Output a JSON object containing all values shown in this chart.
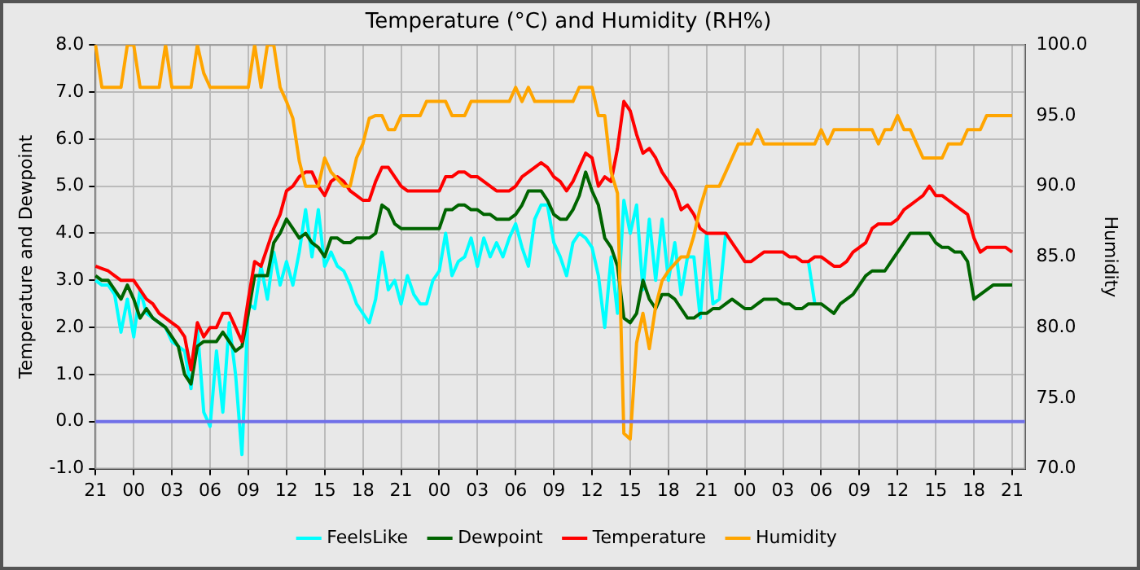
{
  "chart_data": {
    "type": "line",
    "title": "Temperature (°C) and Humidity (RH%)",
    "ylabel": "Temperature and Dewpoint",
    "y2label": "Humidity",
    "categories": [
      "21",
      null,
      null,
      null,
      null,
      null,
      "00",
      null,
      null,
      null,
      null,
      null,
      "03",
      null,
      null,
      null,
      null,
      null,
      "06",
      null,
      null,
      null,
      null,
      null,
      "09",
      null,
      null,
      null,
      null,
      null,
      "12",
      null,
      null,
      null,
      null,
      null,
      "15",
      null,
      null,
      null,
      null,
      null,
      "18",
      null,
      null,
      null,
      null,
      null,
      "21",
      null,
      null,
      null,
      null,
      null,
      "00",
      null,
      null,
      null,
      null,
      null,
      "03",
      null,
      null,
      null,
      null,
      null,
      "06",
      null,
      null,
      null,
      null,
      null,
      "09",
      null,
      null,
      null,
      null,
      null,
      "12",
      null,
      null,
      null,
      null,
      null,
      "15",
      null,
      null,
      null,
      null,
      null,
      "18",
      null,
      null,
      null,
      null,
      null,
      "21",
      null,
      null,
      null,
      null,
      null,
      "00",
      null,
      null,
      null,
      null,
      null,
      "03",
      null,
      null,
      null,
      null,
      null,
      "06",
      null,
      null,
      null,
      null,
      null,
      "09",
      null,
      null,
      null,
      null,
      null,
      "12",
      null,
      null,
      null,
      null,
      null,
      "15",
      null,
      null,
      null,
      null,
      null,
      "18",
      null,
      null,
      null,
      null,
      null,
      "21",
      null,
      null
    ],
    "ylim": [
      -1,
      8
    ],
    "yticks": [
      {
        "value": -1,
        "label": "-1.0"
      },
      {
        "value": 0,
        "label": "0.0"
      },
      {
        "value": 1,
        "label": "1.0"
      },
      {
        "value": 2,
        "label": "2.0"
      },
      {
        "value": 3,
        "label": "3.0"
      },
      {
        "value": 4,
        "label": "4.0"
      },
      {
        "value": 5,
        "label": "5.0"
      },
      {
        "value": 6,
        "label": "6.0"
      },
      {
        "value": 7,
        "label": "7.0"
      },
      {
        "value": 8,
        "label": "8.0"
      }
    ],
    "y2lim": [
      70,
      100
    ],
    "y2ticks": [
      {
        "value": 70,
        "label": "70.0"
      },
      {
        "value": 75,
        "label": "75.0"
      },
      {
        "value": 80,
        "label": "80.0"
      },
      {
        "value": 85,
        "label": "85.0"
      },
      {
        "value": 90,
        "label": "90.0"
      },
      {
        "value": 95,
        "label": "95.0"
      },
      {
        "value": 100,
        "label": "100.0"
      }
    ],
    "grid": true,
    "legend": "bottom",
    "marker": "none",
    "line_style": "solid",
    "ref_lines": [
      {
        "axis": "y",
        "value": 0,
        "label": null,
        "color": "#7070e8"
      }
    ],
    "series": [
      {
        "name": "FeelsLike",
        "color": "#00ffff",
        "values": [
          3.0,
          2.9,
          2.9,
          2.7,
          1.9,
          2.6,
          1.8,
          2.8,
          2.3,
          2.2,
          2.1,
          2.0,
          1.7,
          1.6,
          1.5,
          0.7,
          2.0,
          0.2,
          -0.1,
          1.5,
          0.2,
          2.1,
          1.0,
          -0.7,
          2.5,
          2.4,
          3.3,
          2.6,
          3.6,
          2.9,
          3.4,
          2.9,
          3.6,
          4.5,
          3.5,
          4.5,
          3.3,
          3.6,
          3.3,
          3.2,
          2.9,
          2.5,
          2.3,
          2.1,
          2.6,
          3.6,
          2.8,
          3.0,
          2.5,
          3.1,
          2.7,
          2.5,
          2.5,
          3.0,
          3.2,
          4.0,
          3.1,
          3.4,
          3.5,
          3.9,
          3.3,
          3.9,
          3.5,
          3.8,
          3.5,
          3.9,
          4.2,
          3.7,
          3.3,
          4.3,
          4.6,
          4.6,
          3.8,
          3.5,
          3.1,
          3.8,
          4.0,
          3.9,
          3.7,
          3.1,
          2.0,
          3.5,
          2.3,
          4.7,
          4.0,
          4.6,
          2.8,
          4.3,
          3.0,
          4.3,
          3.0,
          3.8,
          2.7,
          3.5,
          3.5,
          2.2,
          4.0,
          2.5,
          2.6,
          4.0,
          null,
          null,
          null,
          null,
          null,
          null,
          null,
          null,
          null,
          null,
          null,
          null,
          3.4,
          2.5,
          null,
          null,
          null,
          null,
          null,
          null,
          null,
          null,
          null,
          null,
          null,
          null,
          null,
          null,
          null,
          null,
          null,
          null,
          null,
          null,
          null,
          null,
          null,
          null,
          null,
          null,
          null,
          null,
          null,
          null,
          null,
          null,
          null
        ]
      },
      {
        "name": "Dewpoint",
        "color": "#006400",
        "values": [
          3.1,
          3.0,
          3.0,
          2.8,
          2.6,
          2.9,
          2.6,
          2.2,
          2.4,
          2.2,
          2.1,
          2.0,
          1.8,
          1.6,
          1.0,
          0.8,
          1.6,
          1.7,
          1.7,
          1.7,
          1.9,
          1.7,
          1.5,
          1.6,
          2.3,
          3.1,
          3.1,
          3.1,
          3.8,
          4.0,
          4.3,
          4.1,
          3.9,
          4.0,
          3.8,
          3.7,
          3.5,
          3.9,
          3.9,
          3.8,
          3.8,
          3.9,
          3.9,
          3.9,
          4.0,
          4.6,
          4.5,
          4.2,
          4.1,
          4.1,
          4.1,
          4.1,
          4.1,
          4.1,
          4.1,
          4.5,
          4.5,
          4.6,
          4.6,
          4.5,
          4.5,
          4.4,
          4.4,
          4.3,
          4.3,
          4.3,
          4.4,
          4.6,
          4.9,
          4.9,
          4.9,
          4.7,
          4.4,
          4.3,
          4.3,
          4.5,
          4.8,
          5.3,
          4.9,
          4.6,
          3.9,
          3.7,
          3.3,
          2.2,
          2.1,
          2.3,
          3.0,
          2.6,
          2.4,
          2.7,
          2.7,
          2.6,
          2.4,
          2.2,
          2.2,
          2.3,
          2.3,
          2.4,
          2.4,
          2.5,
          2.6,
          2.5,
          2.4,
          2.4,
          2.5,
          2.6,
          2.6,
          2.6,
          2.5,
          2.5,
          2.4,
          2.4,
          2.5,
          2.5,
          2.5,
          2.4,
          2.3,
          2.5,
          2.6,
          2.7,
          2.9,
          3.1,
          3.2,
          3.2,
          3.2,
          3.4,
          3.6,
          3.8,
          4.0,
          4.0,
          4.0,
          4.0,
          3.8,
          3.7,
          3.7,
          3.6,
          3.6,
          3.4,
          2.6,
          2.7,
          2.8,
          2.9,
          2.9,
          2.9,
          2.9,
          null,
          null
        ]
      },
      {
        "name": "Temperature",
        "color": "#ff0000",
        "values": [
          3.3,
          3.25,
          3.2,
          3.1,
          3.0,
          3.0,
          3.0,
          2.8,
          2.6,
          2.5,
          2.3,
          2.2,
          2.1,
          2.0,
          1.8,
          1.1,
          2.1,
          1.8,
          2.0,
          2.0,
          2.3,
          2.3,
          2.0,
          1.7,
          2.6,
          3.4,
          3.3,
          3.7,
          4.1,
          4.4,
          4.9,
          5.0,
          5.2,
          5.3,
          5.3,
          5.0,
          4.8,
          5.1,
          5.2,
          5.1,
          4.9,
          4.8,
          4.7,
          4.7,
          5.1,
          5.4,
          5.4,
          5.2,
          5.0,
          4.9,
          4.9,
          4.9,
          4.9,
          4.9,
          4.9,
          5.2,
          5.2,
          5.3,
          5.3,
          5.2,
          5.2,
          5.1,
          5.0,
          4.9,
          4.9,
          4.9,
          5.0,
          5.2,
          5.3,
          5.4,
          5.5,
          5.4,
          5.2,
          5.1,
          4.9,
          5.1,
          5.4,
          5.7,
          5.6,
          5.0,
          5.2,
          5.1,
          5.8,
          6.8,
          6.6,
          6.1,
          5.7,
          5.8,
          5.6,
          5.3,
          5.1,
          4.9,
          4.5,
          4.6,
          4.4,
          4.1,
          4.0,
          4.0,
          4.0,
          4.0,
          3.8,
          3.6,
          3.4,
          3.4,
          3.5,
          3.6,
          3.6,
          3.6,
          3.6,
          3.5,
          3.5,
          3.4,
          3.4,
          3.5,
          3.5,
          3.4,
          3.3,
          3.3,
          3.4,
          3.6,
          3.7,
          3.8,
          4.1,
          4.2,
          4.2,
          4.2,
          4.3,
          4.5,
          4.6,
          4.7,
          4.8,
          5.0,
          4.8,
          4.8,
          4.7,
          4.6,
          4.5,
          4.4,
          3.9,
          3.6,
          3.7,
          3.7,
          3.7,
          3.7,
          3.6,
          null,
          null
        ]
      },
      {
        "name": "Humidity",
        "color": "#ffa500",
        "axis": "y2",
        "values": [
          100,
          97,
          97,
          97,
          97,
          100,
          100,
          97,
          97,
          97,
          97,
          100,
          97,
          97,
          97,
          97,
          100,
          98,
          97,
          97,
          97,
          97,
          97,
          97,
          97,
          100,
          97,
          100,
          100,
          97,
          96,
          94.8,
          91.8,
          90,
          90,
          90,
          92,
          91,
          90.5,
          90,
          90,
          92,
          93,
          94.8,
          95,
          95,
          94,
          94,
          95,
          95,
          95,
          95,
          96,
          96,
          96,
          96,
          95,
          95,
          95,
          96,
          96,
          96,
          96,
          96,
          96,
          96,
          97,
          96,
          97,
          96,
          96,
          96,
          96,
          96,
          96,
          96,
          97,
          97,
          97,
          95,
          95,
          91,
          89.5,
          72.5,
          72.1,
          78.9,
          81,
          78.5,
          81.5,
          83.3,
          84,
          84.5,
          85,
          85,
          86.5,
          88.5,
          90,
          90,
          90,
          91,
          92,
          93,
          93,
          93,
          94,
          93,
          93,
          93,
          93,
          93,
          93,
          93,
          93,
          93,
          94,
          93,
          94,
          94,
          94,
          94,
          94,
          94,
          94,
          93,
          94,
          94,
          95,
          94,
          94,
          93,
          92,
          92,
          92,
          92,
          93,
          93,
          93,
          94,
          94,
          94,
          95,
          95,
          95,
          95,
          95,
          null,
          null
        ]
      }
    ]
  }
}
